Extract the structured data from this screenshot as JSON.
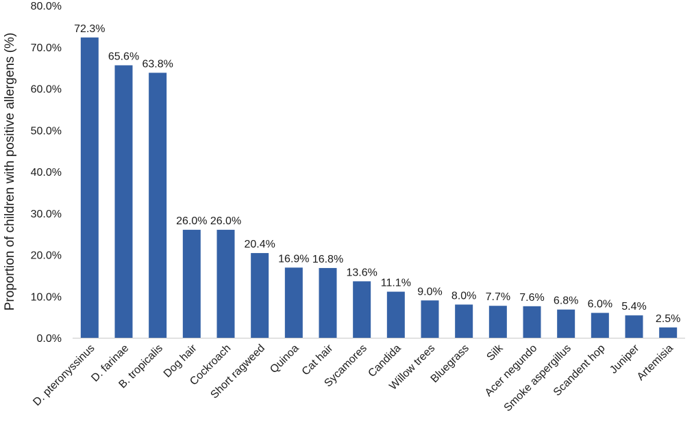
{
  "chart_data": {
    "type": "bar",
    "title": "",
    "xlabel": "",
    "ylabel": "Proportion of children with positive allergens (%)",
    "ylim": [
      0,
      80
    ],
    "y_ticks": [
      "0.0%",
      "10.0%",
      "20.0%",
      "30.0%",
      "40.0%",
      "50.0%",
      "60.0%",
      "70.0%",
      "80.0%"
    ],
    "grid": false,
    "legend": "none",
    "bar_color": "#3461a6",
    "categories": [
      "D. pteronyssinus",
      "D. farinae",
      "B. tropicalis",
      "Dog hair",
      "Cockroach",
      "Short ragweed",
      "Quinoa",
      "Cat hair",
      "Sycamores",
      "Candida",
      "Willow trees",
      "Bluegrass",
      "Silk",
      "Acer negundo",
      "Smoke aspergillus",
      "Scandent hop",
      "Juniper",
      "Artemisia"
    ],
    "values": [
      72.3,
      65.6,
      63.8,
      26.0,
      26.0,
      20.4,
      16.9,
      16.8,
      13.6,
      11.1,
      9.0,
      8.0,
      7.7,
      7.6,
      6.8,
      6.0,
      5.4,
      2.5
    ],
    "data_labels": [
      "72.3%",
      "65.6%",
      "63.8%",
      "26.0%",
      "26.0%",
      "20.4%",
      "16.9%",
      "16.8%",
      "13.6%",
      "11.1%",
      "9.0%",
      "8.0%",
      "7.7%",
      "7.6%",
      "6.8%",
      "6.0%",
      "5.4%",
      "2.5%"
    ]
  }
}
